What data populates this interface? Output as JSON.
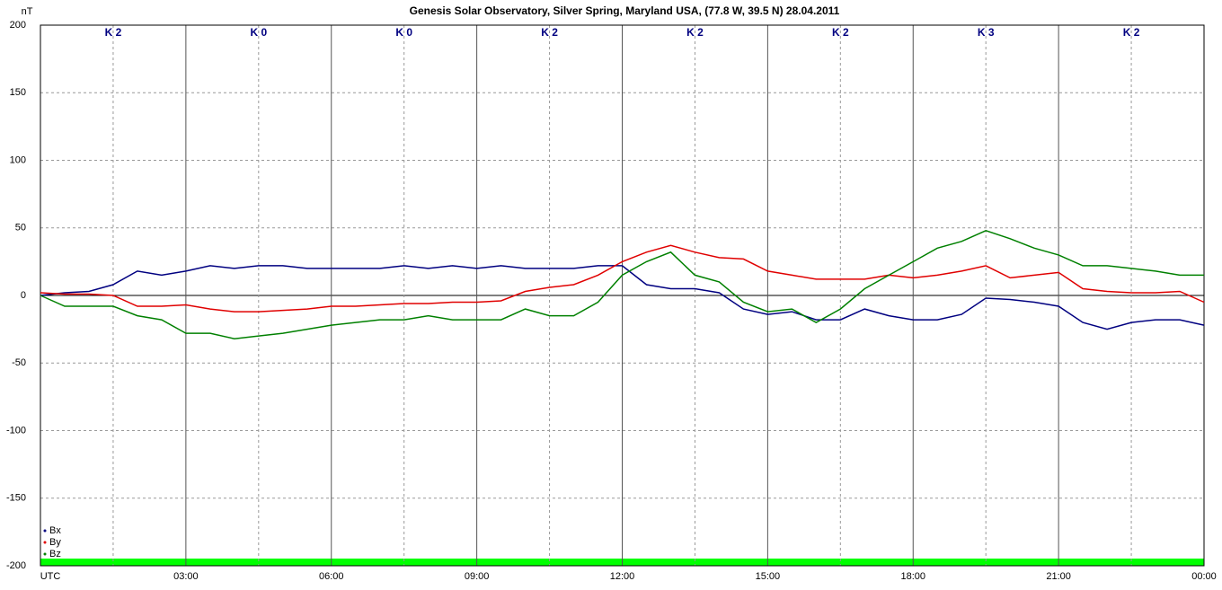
{
  "chart_data": {
    "type": "line",
    "title": "Genesis Solar Observatory, Silver Spring, Maryland USA, (77.8 W, 39.5 N)  28.04.2011",
    "y_label": "nT",
    "x": [
      0,
      0.5,
      1,
      1.5,
      2,
      2.5,
      3,
      3.5,
      4,
      4.5,
      5,
      5.5,
      6,
      6.5,
      7,
      7.5,
      8,
      8.5,
      9,
      9.5,
      10,
      10.5,
      11,
      11.5,
      12,
      12.5,
      13,
      13.5,
      14,
      14.5,
      15,
      15.5,
      16,
      16.5,
      17,
      17.5,
      18,
      18.5,
      19,
      19.5,
      20,
      20.5,
      21,
      21.5,
      22,
      22.5,
      23,
      23.5,
      24
    ],
    "series": [
      {
        "name": "Bx",
        "color": "#000080",
        "values": [
          0,
          2,
          3,
          8,
          18,
          15,
          18,
          22,
          20,
          22,
          22,
          20,
          20,
          20,
          20,
          22,
          20,
          22,
          20,
          22,
          20,
          20,
          20,
          22,
          22,
          8,
          5,
          5,
          2,
          -10,
          -14,
          -12,
          -18,
          -18,
          -10,
          -15,
          -18,
          -18,
          -14,
          -2,
          -3,
          -5,
          -8,
          -20,
          -25,
          -20,
          -18,
          -18,
          -22
        ]
      },
      {
        "name": "By",
        "color": "#e00000",
        "values": [
          2,
          1,
          1,
          0,
          -8,
          -8,
          -7,
          -10,
          -12,
          -12,
          -11,
          -10,
          -8,
          -8,
          -7,
          -6,
          -6,
          -5,
          -5,
          -4,
          3,
          6,
          8,
          15,
          25,
          32,
          37,
          32,
          28,
          27,
          18,
          15,
          12,
          12,
          12,
          15,
          13,
          15,
          18,
          22,
          13,
          15,
          17,
          5,
          3,
          2,
          2,
          3,
          -5
        ]
      },
      {
        "name": "Bz",
        "color": "#008000",
        "values": [
          0,
          -8,
          -8,
          -8,
          -15,
          -18,
          -28,
          -28,
          -32,
          -30,
          -28,
          -25,
          -22,
          -20,
          -18,
          -18,
          -15,
          -18,
          -18,
          -18,
          -10,
          -15,
          -15,
          -5,
          15,
          25,
          32,
          15,
          10,
          -5,
          -12,
          -10,
          -20,
          -10,
          5,
          15,
          25,
          35,
          40,
          48,
          42,
          35,
          30,
          22,
          22,
          20,
          18,
          15,
          15
        ]
      }
    ],
    "xlim": [
      0,
      24
    ],
    "xticks": [
      {
        "value": 0,
        "label": "UTC"
      },
      {
        "value": 3,
        "label": "03:00"
      },
      {
        "value": 6,
        "label": "06:00"
      },
      {
        "value": 9,
        "label": "09:00"
      },
      {
        "value": 12,
        "label": "12:00"
      },
      {
        "value": 15,
        "label": "15:00"
      },
      {
        "value": 18,
        "label": "18:00"
      },
      {
        "value": 21,
        "label": "21:00"
      },
      {
        "value": 24,
        "label": "00:00"
      }
    ],
    "ylim": [
      -200,
      200
    ],
    "yticks": [
      -200,
      -150,
      -100,
      -50,
      0,
      50,
      100,
      150,
      200
    ],
    "k_index": [
      "K 2",
      "K 0",
      "K 0",
      "K 2",
      "K 2",
      "K 2",
      "K 3",
      "K 2"
    ],
    "grid": true,
    "legend": "bottom-left"
  }
}
